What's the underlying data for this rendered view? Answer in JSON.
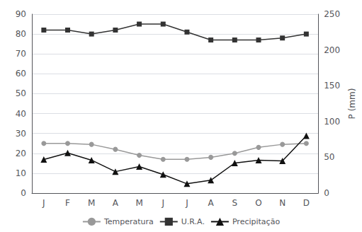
{
  "chart_data": {
    "type": "line",
    "categories": [
      "J",
      "F",
      "M",
      "A",
      "M",
      "J",
      "J",
      "A",
      "S",
      "O",
      "N",
      "D"
    ],
    "series": [
      {
        "name": "Temperatura",
        "color": "#999999",
        "marker": "circle",
        "values": [
          25,
          25,
          24.5,
          22,
          19,
          17,
          17,
          18,
          20,
          23,
          24.5,
          25
        ]
      },
      {
        "name": "U.R.A.",
        "color": "#333333",
        "marker": "square",
        "values": [
          82,
          82,
          80,
          82,
          85,
          85,
          81,
          77,
          77,
          77,
          78,
          80
        ]
      },
      {
        "name": "Precipitação",
        "color": "#111111",
        "marker": "triangle",
        "axis": "y2",
        "values": [
          47,
          56,
          46,
          30,
          37,
          26,
          13,
          18,
          42,
          46,
          45,
          80
        ]
      }
    ],
    "ylim": [
      0,
      90
    ],
    "yticks": [
      0,
      10,
      20,
      30,
      40,
      50,
      60,
      70,
      80,
      90
    ],
    "y2lim": [
      0,
      250
    ],
    "y2ticks": [
      0,
      50,
      100,
      150,
      200,
      250
    ],
    "y2label": "P (mm)",
    "grid": true,
    "legend": "bottom"
  }
}
